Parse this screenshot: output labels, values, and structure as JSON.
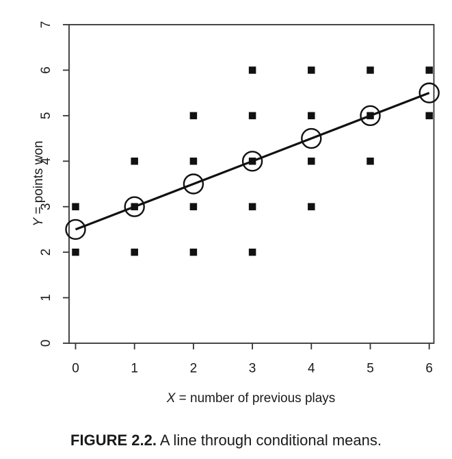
{
  "figure": {
    "caption_label": "FIGURE 2.2.",
    "caption_text": "A line through conditional means."
  },
  "chart_data": {
    "type": "scatter",
    "title": "",
    "xlabel_variable": "X",
    "xlabel_rest": " = number of previous plays",
    "ylabel_variable": "Y",
    "ylabel_rest": " = points won",
    "x_ticks": [
      "0",
      "1",
      "2",
      "3",
      "4",
      "5",
      "6"
    ],
    "y_ticks": [
      "0",
      "1",
      "2",
      "3",
      "4",
      "5",
      "6",
      "7"
    ],
    "xlim": [
      0,
      6
    ],
    "ylim": [
      0,
      7
    ],
    "grid": false,
    "legend": "none",
    "points": [
      [
        0,
        2
      ],
      [
        0,
        3
      ],
      [
        1,
        2
      ],
      [
        1,
        3
      ],
      [
        1,
        4
      ],
      [
        2,
        2
      ],
      [
        2,
        3
      ],
      [
        2,
        4
      ],
      [
        2,
        5
      ],
      [
        3,
        2
      ],
      [
        3,
        3
      ],
      [
        3,
        4
      ],
      [
        3,
        5
      ],
      [
        3,
        6
      ],
      [
        4,
        3
      ],
      [
        4,
        4
      ],
      [
        4,
        5
      ],
      [
        4,
        6
      ],
      [
        5,
        4
      ],
      [
        5,
        5
      ],
      [
        5,
        6
      ],
      [
        6,
        5
      ],
      [
        6,
        6
      ]
    ],
    "conditional_means": [
      [
        0,
        2.5
      ],
      [
        1,
        3.0
      ],
      [
        2,
        3.5
      ],
      [
        3,
        4.0
      ],
      [
        4,
        4.5
      ],
      [
        5,
        5.0
      ],
      [
        6,
        5.5
      ]
    ],
    "line": {
      "x1": 0,
      "y1": 2.5,
      "x2": 6,
      "y2": 5.5,
      "slope": 0.5,
      "intercept": 2.5
    },
    "colors": {
      "data": "#111111",
      "axis": "#333333",
      "text": "#1a1a1a",
      "background": "#ffffff"
    }
  }
}
